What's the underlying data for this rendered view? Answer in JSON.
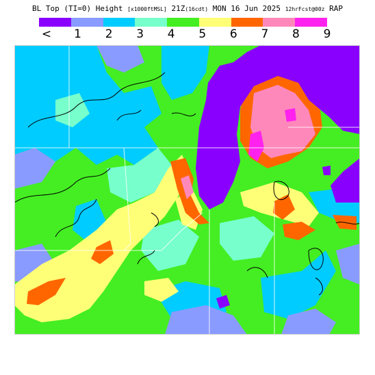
{
  "header": {
    "title_main": "BL Top (TI=0) Height",
    "title_unit": "[x1000ftMSL]",
    "title_time": "21Z",
    "title_time_sub": "(16cdt)",
    "title_date": "MON 16 Jun 2025",
    "title_run": "12hrFcst@00z",
    "title_model": "RAP"
  },
  "legend": {
    "swatches": [
      {
        "color": "#8a00ff"
      },
      {
        "color": "#8a9bff"
      },
      {
        "color": "#00ccff"
      },
      {
        "color": "#77ffcc"
      },
      {
        "color": "#44ee22"
      },
      {
        "color": "#ffff77"
      },
      {
        "color": "#ff6600"
      },
      {
        "color": "#ff88bb"
      },
      {
        "color": "#ff22ee"
      }
    ],
    "labels": [
      "<",
      "1",
      "2",
      "3",
      "4",
      "5",
      "6",
      "7",
      "8",
      "9"
    ]
  }
}
